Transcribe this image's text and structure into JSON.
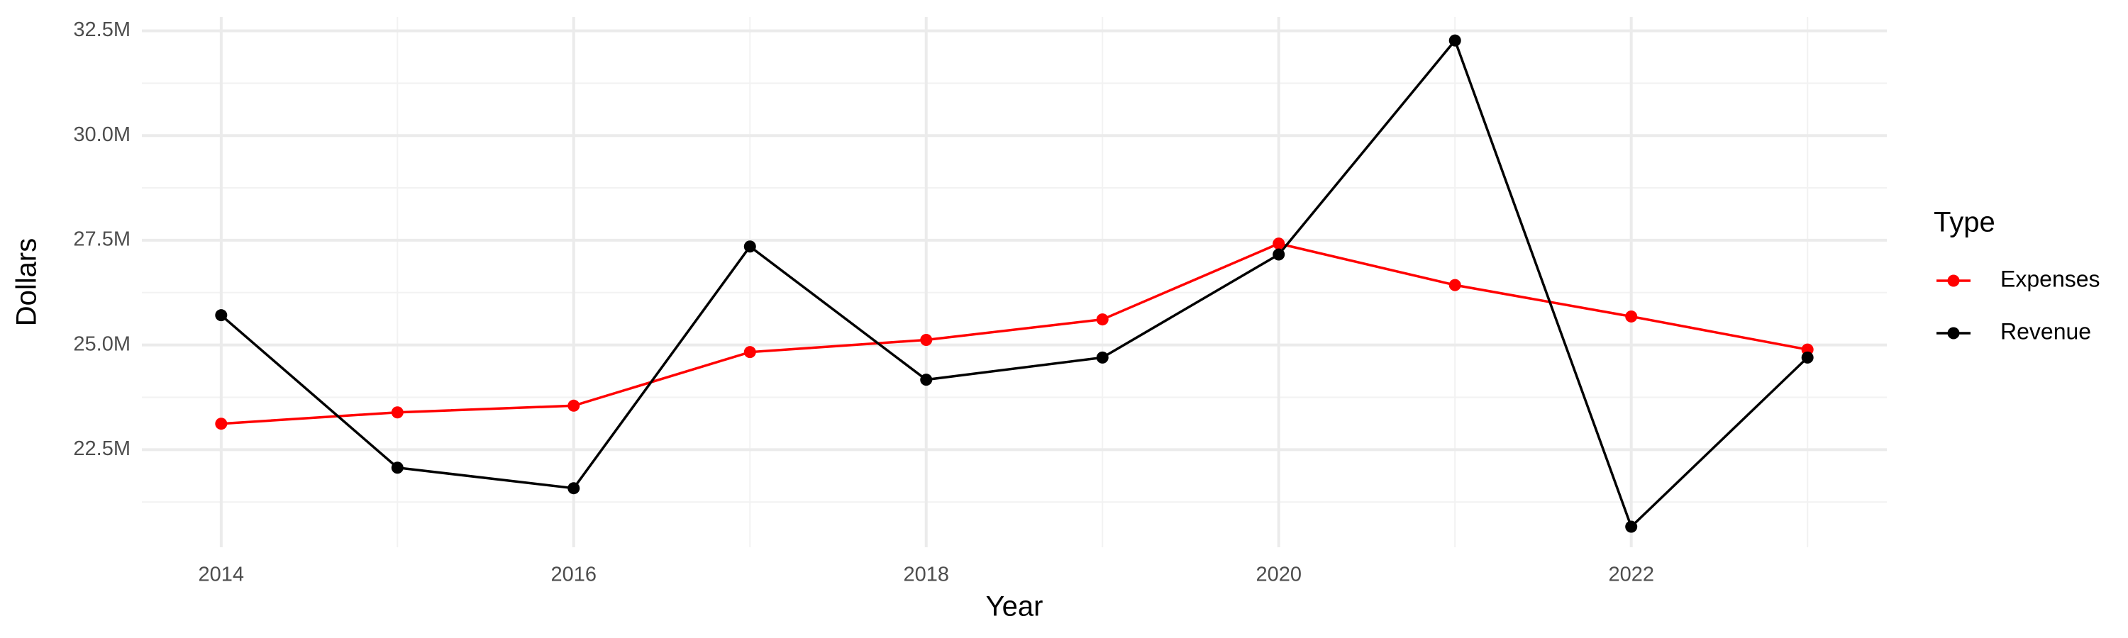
{
  "chart_data": {
    "type": "line",
    "x_label": "Year",
    "y_label": "Dollars",
    "legend_title": "Type",
    "x": [
      2014,
      2015,
      2016,
      2017,
      2018,
      2019,
      2020,
      2021,
      2022,
      2023
    ],
    "series": [
      {
        "name": "Expenses",
        "color": "#ff0000",
        "values": [
          23120000,
          23390000,
          23550000,
          24830000,
          25120000,
          25610000,
          27420000,
          26430000,
          25680000,
          24890000
        ]
      },
      {
        "name": "Revenue",
        "color": "#000000",
        "values": [
          25710000,
          22070000,
          21580000,
          27350000,
          24170000,
          24700000,
          27160000,
          32270000,
          20660000,
          24700000
        ]
      }
    ],
    "xlim": [
      2013.55,
      2023.45
    ],
    "xticks": [
      2014,
      2016,
      2018,
      2020,
      2022
    ],
    "ylim": [
      20170000,
      32830000
    ],
    "yticks": [
      {
        "value": 22500000,
        "label": "22.5M"
      },
      {
        "value": 25000000,
        "label": "25.0M"
      },
      {
        "value": 27500000,
        "label": "27.5M"
      },
      {
        "value": 30000000,
        "label": "30.0M"
      },
      {
        "value": 32500000,
        "label": "32.5M"
      }
    ],
    "grid": true,
    "legend": "right"
  }
}
